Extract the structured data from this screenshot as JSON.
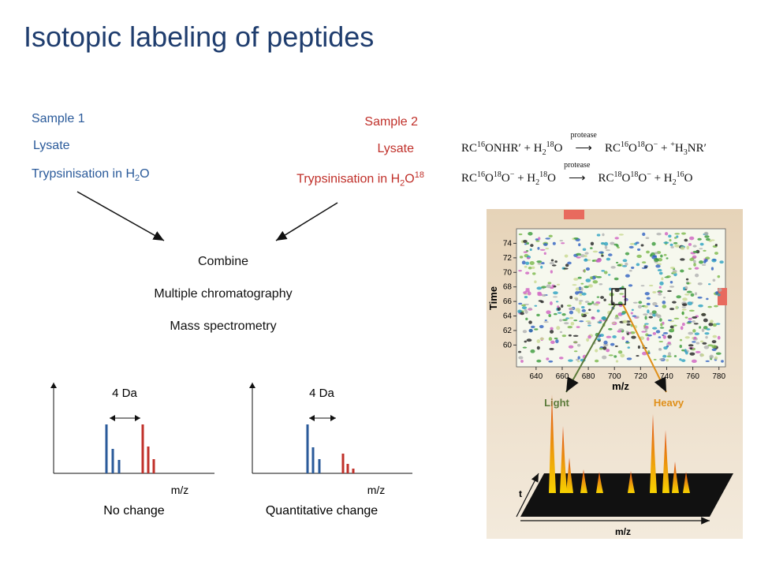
{
  "title": "Isotopic labeling of peptides",
  "sample1": {
    "name": "Sample 1",
    "lysate": "Lysate",
    "step": [
      "Trypsinisation in H",
      "2",
      "O"
    ]
  },
  "sample2": {
    "name": "Sample 2",
    "lysate": "Lysate",
    "step": [
      "Trypsinisation in H",
      "2",
      "O",
      "18"
    ]
  },
  "workflow": [
    "Combine",
    "Multiple chromatography",
    "Mass spectrometry"
  ],
  "spectra": [
    {
      "shift": "4 Da",
      "axis": "m/z",
      "caption": "No change"
    },
    {
      "shift": "4 Da",
      "axis": "m/z",
      "caption": "Quantitative change"
    }
  ],
  "equations": [
    [
      {
        "t": "RC"
      },
      {
        "sup": "16"
      },
      {
        "t": "ONHR′ + H"
      },
      {
        "sub": "2"
      },
      {
        "sup": "18"
      },
      {
        "t": "O "
      },
      {
        "over": "protease"
      },
      {
        "t": " RC"
      },
      {
        "sup": "16"
      },
      {
        "t": "O"
      },
      {
        "sup": "18"
      },
      {
        "t": "O"
      },
      {
        "sup": "−"
      },
      {
        "t": " + "
      },
      {
        "sup": "+"
      },
      {
        "t": "H"
      },
      {
        "sub": "3"
      },
      {
        "t": "NR′"
      }
    ],
    [
      {
        "t": "RC"
      },
      {
        "sup": "16"
      },
      {
        "t": "O"
      },
      {
        "sup": "18"
      },
      {
        "t": "O"
      },
      {
        "sup": "−"
      },
      {
        "t": " + H"
      },
      {
        "sub": "2"
      },
      {
        "sup": "18"
      },
      {
        "t": "O "
      },
      {
        "over": "protease"
      },
      {
        "t": " RC"
      },
      {
        "sup": "18"
      },
      {
        "t": "O"
      },
      {
        "sup": "18"
      },
      {
        "t": "O"
      },
      {
        "sup": "−"
      },
      {
        "t": " + H"
      },
      {
        "sub": "2"
      },
      {
        "sup": "16"
      },
      {
        "t": "O"
      }
    ]
  ],
  "image": {
    "ylabel": "Time",
    "xlabel": "m/z",
    "yticks": [
      60,
      62,
      64,
      66,
      68,
      70,
      72,
      74
    ],
    "xticks": [
      640,
      660,
      680,
      700,
      720,
      740,
      760,
      780
    ],
    "light": "Light",
    "heavy": "Heavy",
    "t_axis": "t",
    "mz_axis": "m/z"
  }
}
